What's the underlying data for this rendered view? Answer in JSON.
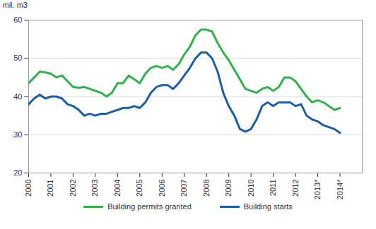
{
  "chart_data": {
    "type": "line",
    "y_label": "mil. m3",
    "x": [
      2000,
      2000.25,
      2000.5,
      2000.75,
      2001,
      2001.25,
      2001.5,
      2001.75,
      2002,
      2002.25,
      2002.5,
      2002.75,
      2003,
      2003.25,
      2003.5,
      2003.75,
      2004,
      2004.25,
      2004.5,
      2004.75,
      2005,
      2005.25,
      2005.5,
      2005.75,
      2006,
      2006.25,
      2006.5,
      2006.75,
      2007,
      2007.25,
      2007.5,
      2007.75,
      2008,
      2008.25,
      2008.5,
      2008.75,
      2009,
      2009.25,
      2009.5,
      2009.75,
      2010,
      2010.25,
      2010.5,
      2010.75,
      2011,
      2011.25,
      2011.5,
      2011.75,
      2012,
      2012.25,
      2012.5,
      2012.75,
      2013,
      2013.25,
      2013.5,
      2013.75,
      2014
    ],
    "series": [
      {
        "name": "Building permits granted",
        "color": "#2db34a",
        "values": [
          43.5,
          45,
          46.5,
          46.3,
          46,
          45,
          45.5,
          44,
          42.5,
          42.3,
          42.5,
          42,
          41.5,
          41,
          40,
          41,
          43.5,
          43.5,
          45.5,
          44.5,
          43.5,
          46,
          47.5,
          48,
          47.5,
          48,
          47,
          48.5,
          51,
          53,
          56,
          57.5,
          57.5,
          57,
          54,
          51.5,
          49.5,
          47,
          44.5,
          42,
          41.5,
          41,
          42,
          42.5,
          41.5,
          42.5,
          45,
          45,
          44,
          42,
          40,
          38.5,
          39,
          38.5,
          37.5,
          36.5,
          37
        ]
      },
      {
        "name": "Building starts",
        "color": "#1b5ea8",
        "values": [
          38,
          39.5,
          40.5,
          39.5,
          40,
          40,
          39.5,
          38,
          37.5,
          36.5,
          35,
          35.5,
          35,
          35.5,
          35.5,
          36,
          36.5,
          37,
          37,
          37.5,
          37,
          38.5,
          41,
          42.5,
          43,
          43,
          42,
          43.5,
          45.5,
          47.5,
          50,
          51.5,
          51.5,
          50,
          46.5,
          41,
          37.5,
          35,
          31.5,
          30.8,
          31.5,
          34,
          37.5,
          38.5,
          37.5,
          38.5,
          38.5,
          38.5,
          37.5,
          38,
          35,
          34,
          33.5,
          32.5,
          32,
          31.5,
          30.5
        ]
      }
    ],
    "xlim": [
      2000,
      2015
    ],
    "xticks": [
      2000,
      2001,
      2002,
      2003,
      2004,
      2005,
      2006,
      2007,
      2008,
      2009,
      2010,
      2011,
      2012,
      {
        "value": 2013,
        "label": "2013*"
      },
      {
        "value": 2014,
        "label": "2014*"
      }
    ],
    "ylim": [
      20,
      60
    ],
    "yticks": [
      20,
      30,
      40,
      50,
      60
    ],
    "grid": true,
    "legend": "bottom"
  }
}
